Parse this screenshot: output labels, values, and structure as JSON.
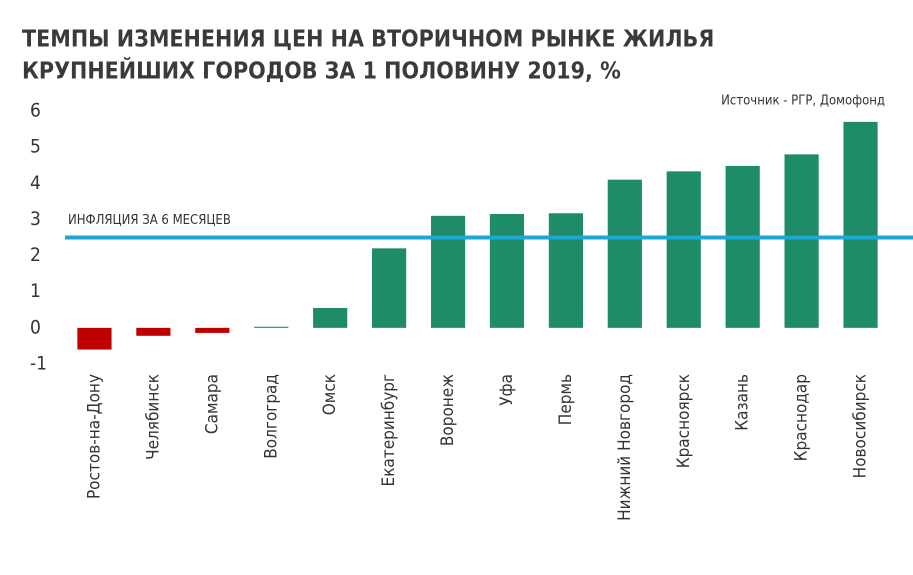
{
  "chart_data": {
    "type": "bar",
    "title": [
      "ТЕМПЫ ИЗМЕНЕНИЯ ЦЕН НА ВТОРИЧНОМ РЫНКЕ ЖИЛЬЯ",
      "КРУПНЕЙШИХ ГОРОДОВ ЗА 1 ПОЛОВИНУ 2019, %"
    ],
    "source": "Источник - РГР, Домофонд",
    "categories": [
      "Ростов-на-Дону",
      "Челябинск",
      "Самара",
      "Волгоград",
      "Омск",
      "Екатеринбург",
      "Воронеж",
      "Уфа",
      "Пермь",
      "Нижний Новгород",
      "Красноярск",
      "Казань",
      "Краснодар",
      "Новосибирск"
    ],
    "values": [
      -0.6,
      -0.22,
      -0.14,
      0.03,
      0.55,
      2.2,
      3.1,
      3.15,
      3.17,
      4.1,
      4.33,
      4.48,
      4.8,
      5.7
    ],
    "color": "#1e8c64",
    "negative_color": "#c00000",
    "ylim": [
      -1,
      6
    ],
    "yticks": [
      -1,
      0,
      1,
      2,
      3,
      4,
      5,
      6
    ],
    "grid": false,
    "reference_line": {
      "value": 2.5,
      "label": "ИНФЛЯЦИЯ ЗА 6 МЕСЯЦЕВ",
      "color": "#1ba8d8"
    }
  }
}
